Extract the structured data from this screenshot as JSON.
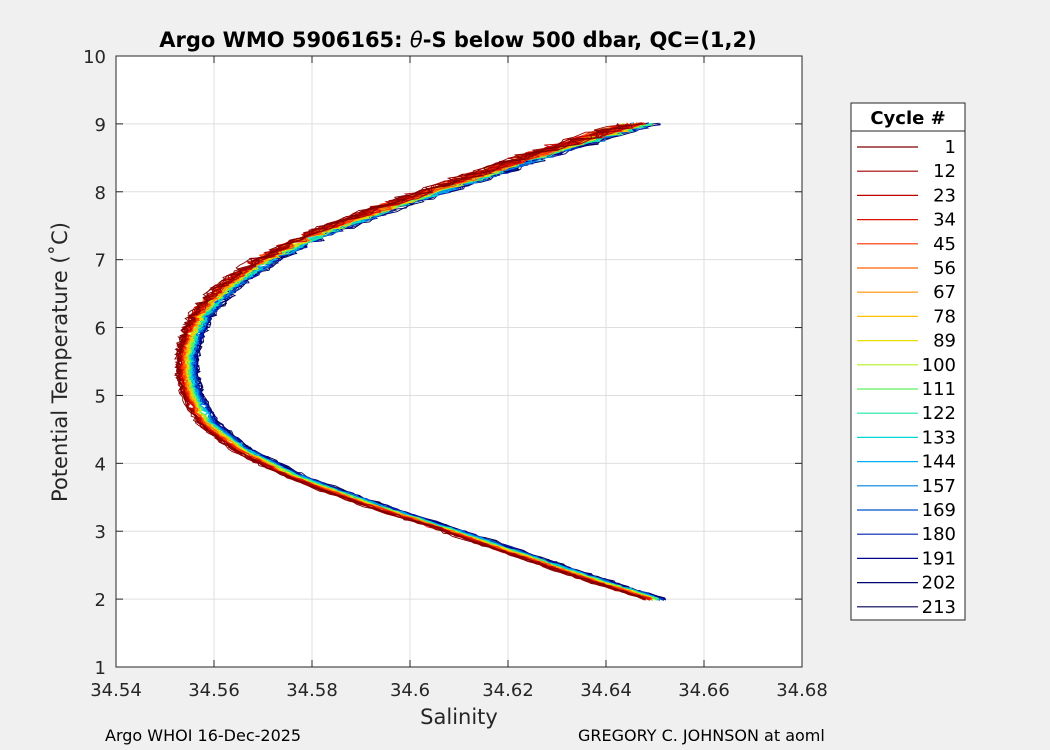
{
  "chart_data": {
    "type": "line",
    "title_prefix": "Argo WMO 5906165: ",
    "title_theta": "θ",
    "title_suffix": "-S below 500 dbar,  QC=(1,2)",
    "xlabel": "Salinity",
    "ylabel": "Potential Temperature (˚C)",
    "xlim": [
      34.54,
      34.68
    ],
    "ylim": [
      1,
      10
    ],
    "xticks": [
      34.54,
      34.56,
      34.58,
      34.6,
      34.62,
      34.64,
      34.66,
      34.68
    ],
    "xtick_labels": [
      "34.54",
      "34.56",
      "34.58",
      "34.6",
      "34.62",
      "34.64",
      "34.66",
      "34.68"
    ],
    "yticks": [
      1,
      2,
      3,
      4,
      5,
      6,
      7,
      8,
      9,
      10
    ],
    "ytick_labels": [
      "1",
      "2",
      "3",
      "4",
      "5",
      "6",
      "7",
      "8",
      "9",
      "10"
    ],
    "grid": true,
    "legend_title": "Cycle #",
    "legend_position": "outside-right",
    "series": [
      {
        "name": "1",
        "color": "#800000"
      },
      {
        "name": "12",
        "color": "#a00000"
      },
      {
        "name": "23",
        "color": "#c00000"
      },
      {
        "name": "34",
        "color": "#e01000"
      },
      {
        "name": "45",
        "color": "#ff3000"
      },
      {
        "name": "56",
        "color": "#ff6000"
      },
      {
        "name": "67",
        "color": "#ff9000"
      },
      {
        "name": "78",
        "color": "#ffc000"
      },
      {
        "name": "89",
        "color": "#e8e000"
      },
      {
        "name": "100",
        "color": "#b0f020"
      },
      {
        "name": "111",
        "color": "#60f060"
      },
      {
        "name": "122",
        "color": "#20e8a0"
      },
      {
        "name": "133",
        "color": "#00d8d8"
      },
      {
        "name": "144",
        "color": "#00b0f0"
      },
      {
        "name": "157",
        "color": "#0080e0"
      },
      {
        "name": "169",
        "color": "#0050d0"
      },
      {
        "name": "180",
        "color": "#0020b0"
      },
      {
        "name": "191",
        "color": "#000090"
      },
      {
        "name": "202",
        "color": "#000070"
      },
      {
        "name": "213",
        "color": "#000050"
      }
    ],
    "profile_shape": {
      "temperature": [
        2.0,
        2.3,
        2.6,
        3.0,
        3.4,
        3.8,
        4.2,
        4.6,
        5.0,
        5.3,
        5.6,
        5.9,
        6.2,
        6.6,
        7.0,
        7.4,
        7.8,
        8.2,
        8.6,
        9.0
      ],
      "salinity": [
        34.65,
        34.637,
        34.625,
        34.609,
        34.592,
        34.577,
        34.566,
        34.559,
        34.556,
        34.555,
        34.555,
        34.556,
        34.558,
        34.563,
        34.571,
        34.582,
        34.597,
        34.613,
        34.629,
        34.647
      ]
    }
  },
  "footer": {
    "left": "Argo WHOI 16-Dec-2025",
    "right": "GREGORY C. JOHNSON at aoml"
  }
}
